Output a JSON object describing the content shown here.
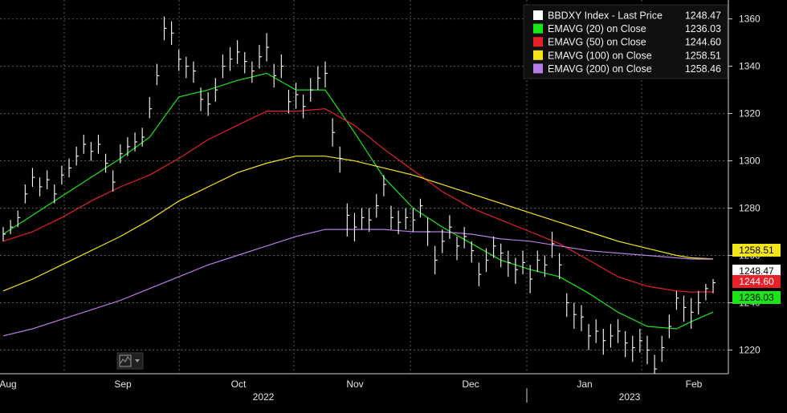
{
  "chart_data": {
    "type": "line",
    "title": "",
    "xlabel": "",
    "ylabel": "",
    "ylim": [
      1210,
      1368
    ],
    "y_ticks": [
      1220,
      1240,
      1260,
      1280,
      1300,
      1320,
      1340,
      1360
    ],
    "x_ticks": [
      "Aug",
      "Sep",
      "Oct",
      "Nov",
      "Dec",
      "Jan",
      "Feb"
    ],
    "years": [
      "2022",
      "2023"
    ],
    "grid": true,
    "legend_position": "top-right",
    "legend": [
      {
        "label": "BBDXY Index - Last Price",
        "value": "1248.47",
        "color": "#ffffff"
      },
      {
        "label": "EMAVG (20)  on Close",
        "value": "1236.03",
        "color": "#19e619"
      },
      {
        "label": "EMAVG (50)  on Close",
        "value": "1244.60",
        "color": "#e8202a"
      },
      {
        "label": "EMAVG (100)  on Close",
        "value": "1258.51",
        "color": "#f2e51d"
      },
      {
        "label": "EMAVG (200)  on Close",
        "value": "1258.46",
        "color": "#b57ee6"
      }
    ],
    "tags": [
      {
        "value": "1258.51",
        "level": 1258.51,
        "bg": "#f2e51d",
        "fg": "#000000"
      },
      {
        "value": "1248.47",
        "level": 1248.47,
        "bg": "#ffffff",
        "fg": "#000000"
      },
      {
        "value": "1244.60",
        "level": 1244.6,
        "bg": "#e8202a",
        "fg": "#ffffff"
      },
      {
        "value": "1236.03",
        "level": 1236.03,
        "bg": "#19e619",
        "fg": "#000000"
      }
    ],
    "price_series": {
      "name": "BBDXY Index - Last Price",
      "color": "#ffffff",
      "x": [
        0,
        2,
        4,
        6,
        8,
        10,
        12,
        14,
        16,
        18,
        20,
        22,
        24,
        26,
        28,
        30,
        32,
        34,
        36,
        38,
        40,
        42,
        44,
        46,
        48,
        50,
        52,
        54,
        56,
        58,
        60,
        62,
        64,
        66,
        68,
        70,
        72,
        74,
        76,
        78,
        80,
        82,
        84,
        86,
        88,
        90,
        92,
        94,
        96,
        98,
        100,
        102,
        104,
        106,
        108,
        110,
        112,
        114,
        116,
        118,
        120,
        122,
        124,
        126,
        128,
        130,
        132,
        134,
        136,
        138,
        140,
        142,
        144,
        146,
        148,
        150,
        152,
        154,
        156,
        158,
        160,
        162,
        164,
        166,
        168,
        170,
        172,
        174,
        176,
        178,
        180,
        182,
        184,
        186,
        188,
        190,
        192,
        194
      ],
      "close": [
        1269,
        1272,
        1276,
        1286,
        1293,
        1289,
        1292,
        1286,
        1294,
        1297,
        1302,
        1307,
        1304,
        1307,
        1299,
        1291,
        1303,
        1306,
        1308,
        1310,
        1322,
        1336,
        1356,
        1354,
        1343,
        1340,
        1338,
        1326,
        1324,
        1330,
        1340,
        1343,
        1346,
        1342,
        1338,
        1344,
        1348,
        1336,
        1340,
        1325,
        1328,
        1323,
        1330,
        1335,
        1337,
        1312,
        1301,
        1277,
        1272,
        1276,
        1275,
        1281,
        1290,
        1276,
        1274,
        1276,
        1275,
        1281,
        1270,
        1258,
        1266,
        1272,
        1264,
        1268,
        1262,
        1252,
        1258,
        1264,
        1261,
        1257,
        1254,
        1257,
        1250,
        1258,
        1256,
        1265,
        1256,
        1240,
        1235,
        1234,
        1226,
        1228,
        1224,
        1226,
        1228,
        1223,
        1221,
        1224,
        1220,
        1212,
        1221,
        1230,
        1242,
        1238,
        1236,
        1240,
        1246,
        1248.47
      ],
      "high": [
        1272,
        1275,
        1279,
        1290,
        1297,
        1293,
        1296,
        1290,
        1298,
        1301,
        1306,
        1311,
        1308,
        1311,
        1303,
        1296,
        1307,
        1310,
        1312,
        1314,
        1327,
        1341,
        1361,
        1359,
        1347,
        1344,
        1342,
        1331,
        1329,
        1335,
        1345,
        1348,
        1351,
        1346,
        1342,
        1349,
        1354,
        1341,
        1345,
        1330,
        1333,
        1328,
        1335,
        1340,
        1342,
        1318,
        1306,
        1282,
        1278,
        1280,
        1280,
        1286,
        1294,
        1281,
        1279,
        1280,
        1280,
        1284,
        1276,
        1264,
        1271,
        1277,
        1268,
        1272,
        1266,
        1257,
        1263,
        1268,
        1265,
        1262,
        1259,
        1262,
        1256,
        1262,
        1260,
        1270,
        1261,
        1244,
        1240,
        1239,
        1231,
        1233,
        1229,
        1231,
        1233,
        1228,
        1226,
        1229,
        1226,
        1218,
        1226,
        1235,
        1245,
        1243,
        1242,
        1245,
        1248,
        1250
      ],
      "low": [
        1266,
        1269,
        1272,
        1282,
        1289,
        1285,
        1288,
        1282,
        1290,
        1293,
        1298,
        1303,
        1300,
        1303,
        1295,
        1287,
        1299,
        1302,
        1304,
        1306,
        1318,
        1332,
        1351,
        1349,
        1338,
        1335,
        1333,
        1321,
        1319,
        1325,
        1335,
        1338,
        1341,
        1337,
        1333,
        1339,
        1342,
        1331,
        1335,
        1320,
        1322,
        1318,
        1325,
        1330,
        1331,
        1306,
        1295,
        1268,
        1266,
        1271,
        1270,
        1276,
        1285,
        1271,
        1269,
        1271,
        1270,
        1276,
        1264,
        1252,
        1261,
        1267,
        1258,
        1263,
        1257,
        1247,
        1253,
        1259,
        1255,
        1251,
        1248,
        1252,
        1244,
        1253,
        1251,
        1259,
        1250,
        1234,
        1229,
        1228,
        1220,
        1223,
        1218,
        1221,
        1223,
        1217,
        1215,
        1219,
        1214,
        1210,
        1215,
        1225,
        1237,
        1232,
        1229,
        1235,
        1241,
        1244
      ]
    },
    "ema_series": [
      {
        "name": "EMAVG (20)  on Close",
        "color": "#19e619",
        "x": [
          0,
          8,
          16,
          24,
          32,
          40,
          48,
          56,
          64,
          72,
          80,
          88,
          96,
          104,
          112,
          120,
          128,
          136,
          144,
          152,
          160,
          168,
          176,
          184,
          188,
          194
        ],
        "values": [
          1269,
          1277,
          1285,
          1293,
          1301,
          1310,
          1327,
          1330,
          1334,
          1337,
          1330,
          1330,
          1312,
          1293,
          1280,
          1272,
          1265,
          1258,
          1254,
          1251,
          1244,
          1236,
          1230,
          1229,
          1232,
          1236.03
        ]
      },
      {
        "name": "EMAVG (50)  on Close",
        "color": "#e8202a",
        "x": [
          0,
          8,
          16,
          24,
          32,
          40,
          48,
          56,
          64,
          72,
          80,
          88,
          96,
          104,
          112,
          120,
          128,
          136,
          144,
          152,
          160,
          168,
          176,
          184,
          188,
          194
        ],
        "values": [
          1266,
          1270,
          1276,
          1283,
          1289,
          1294,
          1301,
          1309,
          1315,
          1321,
          1321,
          1322,
          1315,
          1305,
          1296,
          1287,
          1280,
          1275,
          1270,
          1265,
          1258,
          1251,
          1247,
          1245,
          1244.5,
          1244.6
        ]
      },
      {
        "name": "EMAVG (100)  on Close",
        "color": "#f2e51d",
        "x": [
          0,
          8,
          16,
          24,
          32,
          40,
          48,
          56,
          64,
          72,
          80,
          88,
          96,
          104,
          112,
          120,
          128,
          136,
          144,
          152,
          160,
          168,
          176,
          184,
          188,
          194
        ],
        "values": [
          1245,
          1250,
          1256,
          1262,
          1268,
          1275,
          1283,
          1289,
          1295,
          1299,
          1302,
          1302,
          1300,
          1297,
          1294,
          1290,
          1286,
          1282,
          1278,
          1274,
          1270,
          1266,
          1263,
          1260,
          1259,
          1258.51
        ]
      },
      {
        "name": "EMAVG (200)  on Close",
        "color": "#b57ee6",
        "x": [
          0,
          8,
          16,
          24,
          32,
          40,
          48,
          56,
          64,
          72,
          80,
          88,
          96,
          104,
          112,
          120,
          128,
          136,
          144,
          152,
          160,
          168,
          176,
          184,
          188,
          194
        ],
        "values": [
          1226,
          1229,
          1233,
          1237,
          1241,
          1246,
          1251,
          1256,
          1260,
          1264,
          1268,
          1271,
          1271,
          1271,
          1270,
          1270,
          1269,
          1267,
          1266,
          1264,
          1262,
          1261,
          1260,
          1259,
          1258.5,
          1258.46
        ]
      }
    ]
  }
}
